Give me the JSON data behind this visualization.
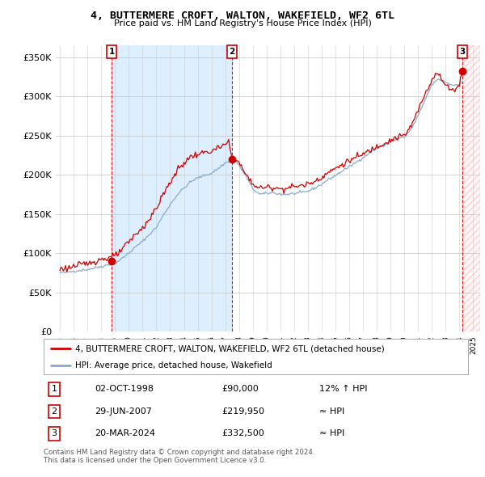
{
  "title": "4, BUTTERMERE CROFT, WALTON, WAKEFIELD, WF2 6TL",
  "subtitle": "Price paid vs. HM Land Registry's House Price Index (HPI)",
  "ylabel_ticks": [
    "£0",
    "£50K",
    "£100K",
    "£150K",
    "£200K",
    "£250K",
    "£300K",
    "£350K"
  ],
  "ylim": [
    0,
    350000
  ],
  "xlim_start": 1994.7,
  "xlim_end": 2025.5,
  "sale_dates": [
    1998.75,
    2007.5,
    2024.22
  ],
  "sale_prices": [
    90000,
    219950,
    332500
  ],
  "sale_labels": [
    "1",
    "2",
    "3"
  ],
  "sale_info": [
    {
      "label": "1",
      "date": "02-OCT-1998",
      "price": "£90,000",
      "hpi": "12% ↑ HPI"
    },
    {
      "label": "2",
      "date": "29-JUN-2007",
      "price": "£219,950",
      "hpi": "≈ HPI"
    },
    {
      "label": "3",
      "date": "20-MAR-2024",
      "price": "£332,500",
      "hpi": "≈ HPI"
    }
  ],
  "legend_property": "4, BUTTERMERE CROFT, WALTON, WAKEFIELD, WF2 6TL (detached house)",
  "legend_hpi": "HPI: Average price, detached house, Wakefield",
  "footer1": "Contains HM Land Registry data © Crown copyright and database right 2024.",
  "footer2": "This data is licensed under the Open Government Licence v3.0.",
  "property_line_color": "#cc0000",
  "hpi_line_color": "#88aacc",
  "grid_color": "#cccccc",
  "background_color": "#ffffff",
  "shade_color": "#ddeeff",
  "hatch_color": "#ffcccc"
}
